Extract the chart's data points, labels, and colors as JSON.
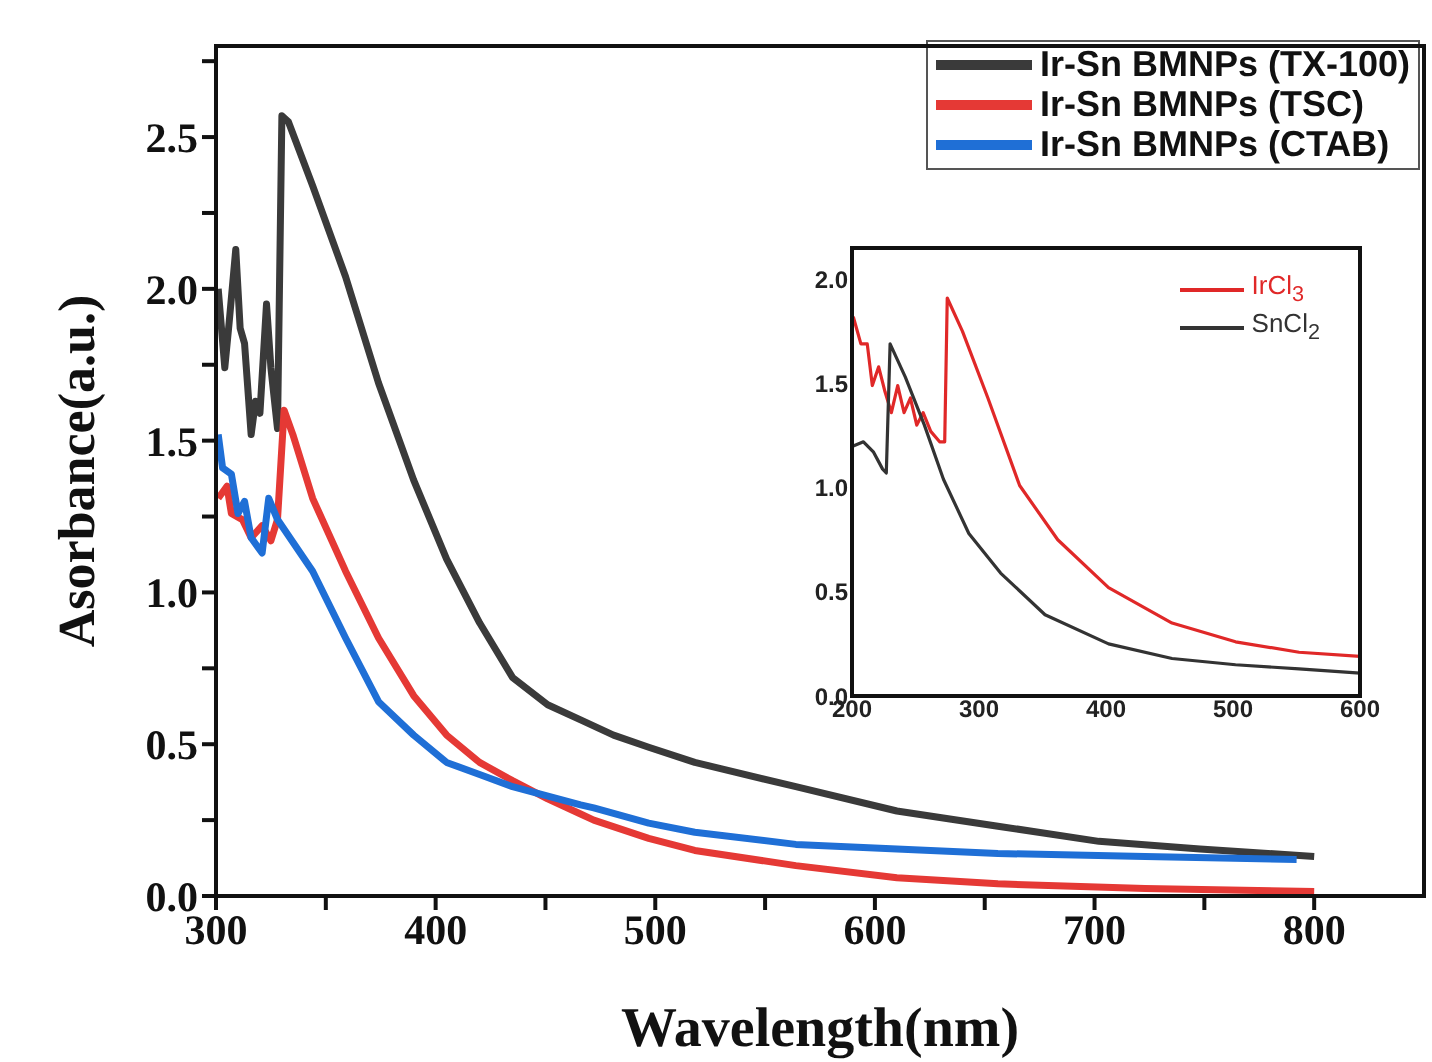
{
  "chart_data": [
    {
      "type": "line",
      "xlabel": "Wavelength(nm)",
      "ylabel": "Asorbance(a.u.)",
      "xlim": [
        300,
        850
      ],
      "ylim": [
        0,
        2.8
      ],
      "xticks": [
        300,
        {
          "value": 350,
          "label": null
        },
        400,
        {
          "value": 450,
          "label": null
        },
        500,
        {
          "value": 550,
          "label": null
        },
        600,
        {
          "value": 650,
          "label": null
        },
        700,
        {
          "value": 750,
          "label": null
        },
        800
      ],
      "yticks": [
        {
          "value": 0,
          "label": "0.0"
        },
        {
          "value": 0.25,
          "label": null
        },
        {
          "value": 0.5,
          "label": "0.5"
        },
        {
          "value": 0.75,
          "label": null
        },
        {
          "value": 1,
          "label": "1.0"
        },
        {
          "value": 1.25,
          "label": null
        },
        {
          "value": 1.5,
          "label": "1.5"
        },
        {
          "value": 1.75,
          "label": null
        },
        {
          "value": 2,
          "label": "2.0"
        },
        {
          "value": 2.25,
          "label": null
        },
        {
          "value": 2.5,
          "label": "2.5"
        },
        {
          "value": 2.75,
          "label": null
        }
      ],
      "legend": "top right",
      "series": [
        {
          "name": "Ir-Sn BMNPs (TX-100)",
          "color": "#3a3a3a",
          "x": [
            301,
            304,
            306,
            309,
            311,
            313,
            316,
            318,
            320,
            323,
            325,
            328,
            330,
            333,
            344,
            359,
            374,
            390,
            405,
            420,
            435,
            451,
            466,
            481,
            497,
            518,
            564,
            610,
            656,
            702,
            748,
            800
          ],
          "values": [
            2.0,
            1.74,
            1.89,
            2.13,
            1.87,
            1.82,
            1.52,
            1.63,
            1.59,
            1.95,
            1.74,
            1.54,
            2.57,
            2.55,
            2.34,
            2.04,
            1.69,
            1.37,
            1.11,
            0.9,
            0.72,
            0.63,
            0.58,
            0.53,
            0.49,
            0.44,
            0.36,
            0.28,
            0.23,
            0.18,
            0.155,
            0.13
          ]
        },
        {
          "name": "Ir-Sn BMNPs (TSC)",
          "color": "#e53935",
          "x": [
            301,
            305,
            307,
            312,
            316,
            321,
            325,
            328,
            331,
            335,
            344,
            359,
            374,
            390,
            405,
            420,
            435,
            451,
            466,
            472,
            497,
            518,
            564,
            610,
            656,
            723,
            800
          ],
          "values": [
            1.31,
            1.35,
            1.26,
            1.24,
            1.18,
            1.22,
            1.17,
            1.24,
            1.6,
            1.52,
            1.31,
            1.07,
            0.85,
            0.66,
            0.53,
            0.44,
            0.38,
            0.32,
            0.27,
            0.25,
            0.19,
            0.15,
            0.1,
            0.06,
            0.04,
            0.025,
            0.015
          ]
        },
        {
          "name": "Ir-Sn BMNPs (CTAB)",
          "color": "#1f6fd6",
          "x": [
            301,
            303,
            307,
            310,
            313,
            316,
            321,
            324,
            328,
            344,
            359,
            374,
            390,
            405,
            420,
            435,
            466,
            472,
            497,
            518,
            564,
            610,
            656,
            723,
            792
          ],
          "values": [
            1.52,
            1.41,
            1.39,
            1.26,
            1.3,
            1.18,
            1.13,
            1.31,
            1.24,
            1.07,
            0.85,
            0.64,
            0.53,
            0.44,
            0.4,
            0.36,
            0.3,
            0.29,
            0.24,
            0.21,
            0.17,
            0.155,
            0.14,
            0.13,
            0.12
          ]
        }
      ]
    },
    {
      "type": "line",
      "xlim": [
        200,
        600
      ],
      "ylim": [
        0,
        2.15
      ],
      "xticks": [
        200,
        300,
        400,
        500,
        600
      ],
      "yticks": [
        {
          "value": 0,
          "label": "0.0"
        },
        {
          "value": 0.5,
          "label": "0.5"
        },
        {
          "value": 1,
          "label": "1.0"
        },
        {
          "value": 1.5,
          "label": "1.5"
        },
        {
          "value": 2,
          "label": "2.0"
        }
      ],
      "legend": "top right",
      "series": [
        {
          "name": "IrCl$_{3}$",
          "color": "#e02828",
          "x": [
            201,
            207,
            212,
            216,
            221,
            226,
            231,
            236,
            241,
            246,
            251,
            256,
            262,
            269,
            273,
            275,
            287,
            307,
            332,
            362,
            402,
            452,
            502,
            552,
            600
          ],
          "values": [
            1.82,
            1.69,
            1.69,
            1.49,
            1.58,
            1.46,
            1.36,
            1.49,
            1.36,
            1.43,
            1.3,
            1.36,
            1.27,
            1.22,
            1.22,
            1.91,
            1.75,
            1.43,
            1.01,
            0.75,
            0.52,
            0.35,
            0.26,
            0.21,
            0.19
          ]
        },
        {
          "name": "SnCl$_{2}$",
          "color": "#333333",
          "x": [
            201,
            209,
            217,
            224,
            227,
            230,
            242,
            257,
            272,
            292,
            317,
            352,
            402,
            452,
            502,
            552,
            600
          ],
          "values": [
            1.2,
            1.22,
            1.17,
            1.09,
            1.07,
            1.69,
            1.53,
            1.3,
            1.04,
            0.78,
            0.59,
            0.39,
            0.25,
            0.18,
            0.15,
            0.13,
            0.11
          ]
        }
      ]
    }
  ]
}
